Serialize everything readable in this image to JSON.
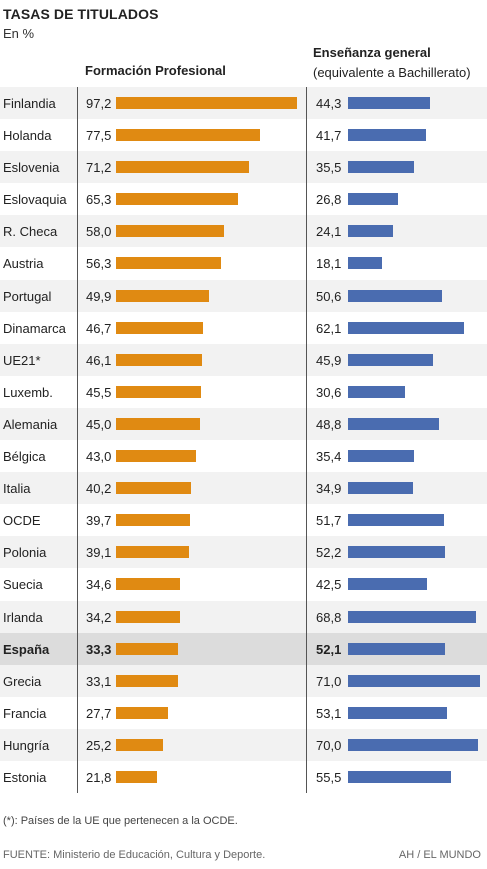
{
  "title": "TASAS DE TITULADOS",
  "subtitle": "En %",
  "columns": {
    "fp": "Formación Profesional",
    "general_line1": "Enseñanza general",
    "general_line2": "(equivalente a Bachillerato)"
  },
  "colors": {
    "fp": "#e08a12",
    "general": "#4a6cb0",
    "highlight": "#dcdcdc"
  },
  "chart_data": {
    "type": "bar",
    "categories": [
      "Finlandia",
      "Holanda",
      "Eslovenia",
      "Eslovaquia",
      "R. Checa",
      "Austria",
      "Portugal",
      "Dinamarca",
      "UE21*",
      "Luxemb.",
      "Alemania",
      "Bélgica",
      "Italia",
      "OCDE",
      "Polonia",
      "Suecia",
      "Irlanda",
      "España",
      "Grecia",
      "Francia",
      "Hungría",
      "Estonia"
    ],
    "series": [
      {
        "name": "Formación Profesional",
        "values": [
          97.2,
          77.5,
          71.2,
          65.3,
          58.0,
          56.3,
          49.9,
          46.7,
          46.1,
          45.5,
          45.0,
          43.0,
          40.2,
          39.7,
          39.1,
          34.6,
          34.2,
          33.3,
          33.1,
          27.7,
          25.2,
          21.8
        ]
      },
      {
        "name": "Enseñanza general",
        "values": [
          44.3,
          41.7,
          35.5,
          26.8,
          24.1,
          18.1,
          50.6,
          62.1,
          45.9,
          30.6,
          48.8,
          35.4,
          34.9,
          51.7,
          52.2,
          42.5,
          68.8,
          52.1,
          71.0,
          53.1,
          70.0,
          55.5
        ]
      }
    ],
    "value_labels_fp": [
      "97,2",
      "77,5",
      "71,2",
      "65,3",
      "58,0",
      "56,3",
      "49,9",
      "46,7",
      "46,1",
      "45,5",
      "45,0",
      "43,0",
      "40,2",
      "39,7",
      "39,1",
      "34,6",
      "34,2",
      "33,3",
      "33,1",
      "27,7",
      "25,2",
      "21,8"
    ],
    "value_labels_general": [
      "44,3",
      "41,7",
      "35,5",
      "26,8",
      "24,1",
      "18,1",
      "50,6",
      "62,1",
      "45,9",
      "30,6",
      "48,8",
      "35,4",
      "34,9",
      "51,7",
      "52,2",
      "42,5",
      "68,8",
      "52,1",
      "71,0",
      "53,1",
      "70,0",
      "55,5"
    ],
    "highlight": "España"
  },
  "footnote": "(*): Países de la UE que pertenecen a la OCDE.",
  "source": "FUENTE: Ministerio de Educación, Cultura y Deporte.",
  "credit": "AH / EL MUNDO"
}
